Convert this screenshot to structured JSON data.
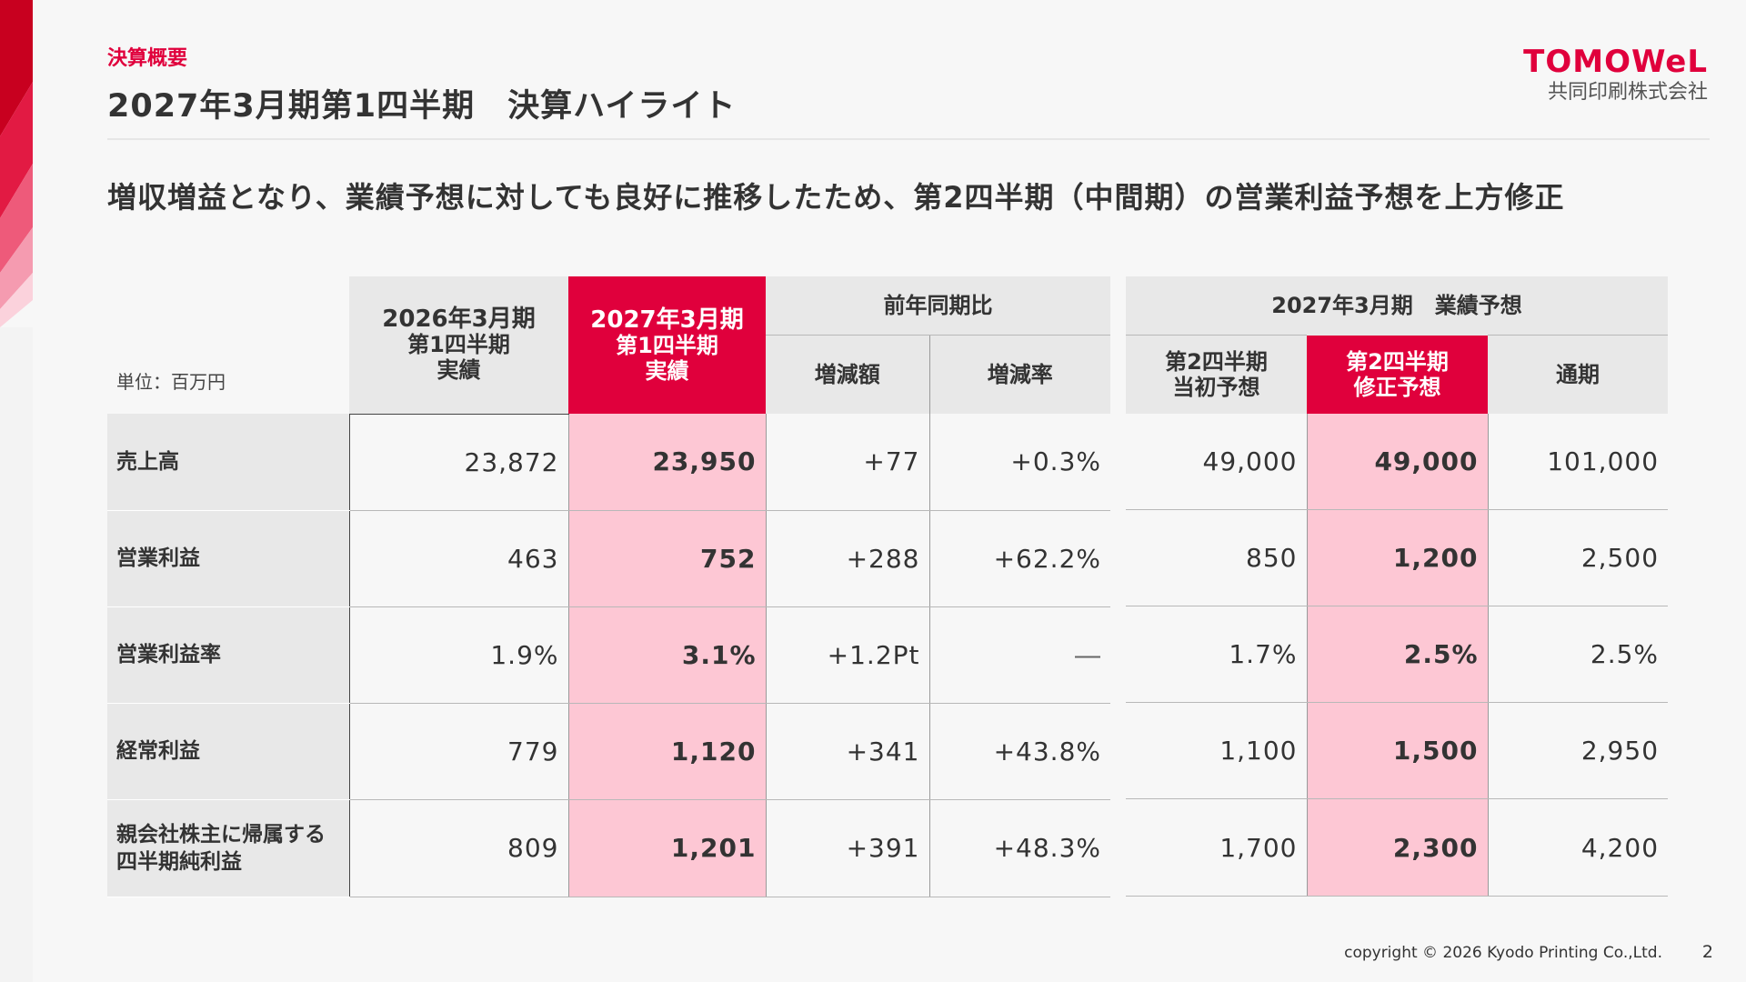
{
  "header": {
    "section_label": "決算概要",
    "title": "2027年3月期第1四半期　決算ハイライト",
    "logo_name": "TOMOWeL",
    "logo_sub": "共同印刷株式会社"
  },
  "headline": "増収増益となり、業績予想に対しても良好に推移したため、第2四半期（中間期）の営業利益予想を上方修正",
  "table": {
    "unit": "単位：百万円",
    "col_prev_actual": [
      "2026年3月期",
      "第1四半期",
      "実績"
    ],
    "col_curr_actual": [
      "2027年3月期",
      "第1四半期",
      "実績"
    ],
    "yoy_group": "前年同期比",
    "col_change_amount": "増減額",
    "col_change_rate": "増減率",
    "forecast_group": "2027年3月期　業績予想",
    "col_q2_initial": [
      "第2四半期",
      "当初予想"
    ],
    "col_q2_revised": [
      "第2四半期",
      "修正予想"
    ],
    "col_full_year": "通期",
    "rows": [
      {
        "label": "売上高",
        "prev": "23,872",
        "curr": "23,950",
        "diff": "+77",
        "rate": "+0.3%",
        "q2_initial": "49,000",
        "q2_revised": "49,000",
        "full_year": "101,000"
      },
      {
        "label": "営業利益",
        "prev": "463",
        "curr": "752",
        "diff": "+288",
        "rate": "+62.2%",
        "q2_initial": "850",
        "q2_revised": "1,200",
        "full_year": "2,500"
      },
      {
        "label": "営業利益率",
        "prev": "1.9%",
        "curr": "3.1%",
        "diff": "+1.2Pt",
        "rate": "―",
        "q2_initial": "1.7%",
        "q2_revised": "2.5%",
        "full_year": "2.5%"
      },
      {
        "label": "経常利益",
        "prev": "779",
        "curr": "1,120",
        "diff": "+341",
        "rate": "+43.8%",
        "q2_initial": "1,100",
        "q2_revised": "1,500",
        "full_year": "2,950"
      },
      {
        "label_line1": "親会社株主に帰属する",
        "label_line2": "四半期純利益",
        "prev": "809",
        "curr": "1,201",
        "diff": "+391",
        "rate": "+48.3%",
        "q2_initial": "1,700",
        "q2_revised": "2,300",
        "full_year": "4,200"
      }
    ]
  },
  "footer": {
    "copyright": "copyright © 2026 Kyodo Printing Co.,Ltd.",
    "page_number": "2"
  },
  "colors": {
    "accent": "#e0003c",
    "highlight_cell": "#fdc7d4",
    "header_gray": "#e8e8e8"
  }
}
